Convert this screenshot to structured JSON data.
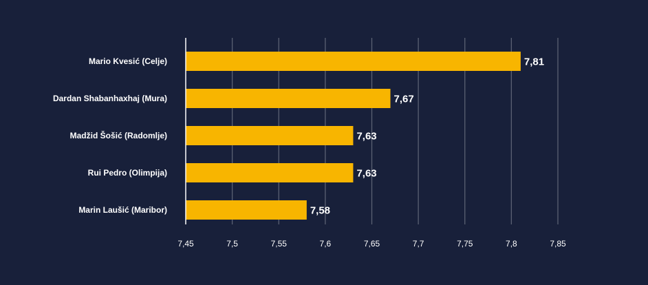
{
  "chart_data": {
    "type": "bar",
    "orientation": "horizontal",
    "categories": [
      "Mario Kvesić (Celje)",
      "Dardan Shabanhaxhaj (Mura)",
      "Madžid Šošić (Radomlje)",
      "Rui Pedro (Olimpija)",
      "Marin Laušić (Maribor)"
    ],
    "values": [
      7.81,
      7.67,
      7.63,
      7.63,
      7.58
    ],
    "value_labels": [
      "7,81",
      "7,67",
      "7,63",
      "7,63",
      "7,58"
    ],
    "x_ticks": [
      "7,45",
      "7,5",
      "7,55",
      "7,6",
      "7,65",
      "7,7",
      "7,75",
      "7,8",
      "7,85"
    ],
    "xlim": [
      7.45,
      7.85
    ],
    "grid": true,
    "colors": {
      "background": "#18203a",
      "bar": "#f8b500",
      "grid": "#5b6173",
      "text": "#ffffff"
    }
  }
}
